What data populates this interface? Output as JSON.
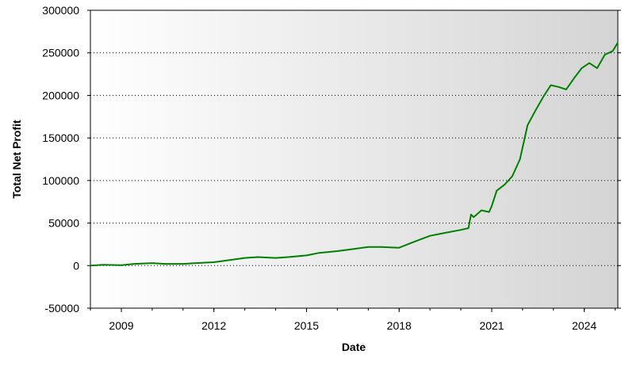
{
  "chart_data": {
    "type": "line",
    "title": "",
    "xlabel": "Date",
    "ylabel": "Total Net Profit",
    "xlim": [
      "2008-01-01",
      "2025-02-01"
    ],
    "ylim": [
      -50000,
      300000
    ],
    "yticks": [
      -50000,
      0,
      50000,
      100000,
      150000,
      200000,
      250000,
      300000
    ],
    "ytick_labels": [
      "-50000",
      "0",
      "50000",
      "100000",
      "150000",
      "200000",
      "250000",
      "300000"
    ],
    "xticks": [
      "2009-01-01",
      "2012-01-01",
      "2015-01-01",
      "2018-01-01",
      "2021-01-01",
      "2024-01-01"
    ],
    "xtick_labels": [
      "2009",
      "2012",
      "2015",
      "2018",
      "2021",
      "2024"
    ],
    "grid": "horizontal-dotted",
    "background": "gradient-white-to-gray",
    "line_color": "#008000",
    "series": [
      {
        "x": [
          "2008-01-01",
          "2008-06-01",
          "2009-01-01",
          "2009-06-01",
          "2010-01-01",
          "2010-06-01",
          "2011-01-01",
          "2011-06-01",
          "2012-01-01",
          "2012-06-01",
          "2013-01-01",
          "2013-06-01",
          "2014-01-01",
          "2014-06-01",
          "2015-01-01",
          "2015-06-01",
          "2016-01-01",
          "2016-06-01",
          "2017-01-01",
          "2017-06-01",
          "2018-01-01",
          "2018-06-01",
          "2019-01-01",
          "2019-06-01",
          "2020-01-01",
          "2020-04-01",
          "2020-05-01",
          "2020-06-01",
          "2020-09-01",
          "2020-12-01",
          "2021-01-01",
          "2021-03-01",
          "2021-06-01",
          "2021-09-01",
          "2021-12-01",
          "2022-03-01",
          "2022-06-01",
          "2022-09-01",
          "2022-12-01",
          "2023-03-01",
          "2023-06-01",
          "2023-09-01",
          "2023-12-01",
          "2024-03-01",
          "2024-06-01",
          "2024-09-01",
          "2024-12-01",
          "2025-02-01"
        ],
        "y": [
          0,
          1000,
          500,
          2000,
          3000,
          2000,
          2000,
          3000,
          4000,
          6000,
          9000,
          10000,
          9000,
          10000,
          12000,
          15000,
          17000,
          19000,
          22000,
          22000,
          21000,
          27000,
          35000,
          38000,
          42000,
          44000,
          60000,
          57000,
          65000,
          63000,
          70000,
          88000,
          95000,
          105000,
          125000,
          165000,
          182000,
          198000,
          212000,
          210000,
          207000,
          220000,
          232000,
          238000,
          232000,
          248000,
          252000,
          262000
        ]
      }
    ]
  }
}
